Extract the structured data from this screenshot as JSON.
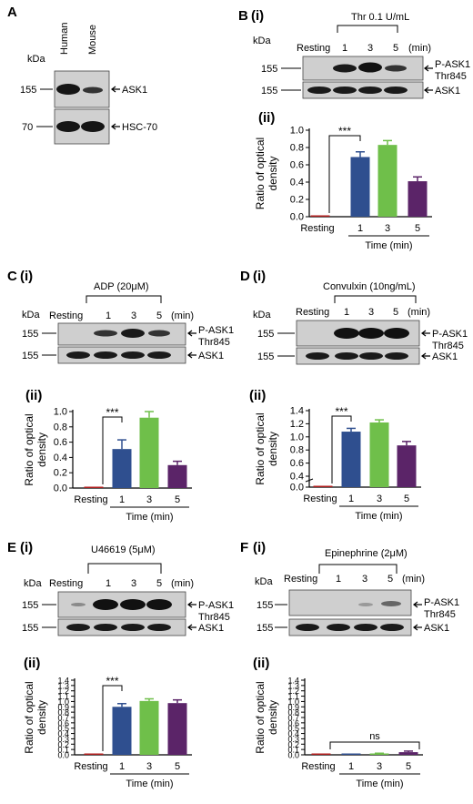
{
  "colors": {
    "resting": "#b11e1e",
    "t1": "#2f4f8f",
    "t3": "#6fbf4a",
    "t5": "#5b2468",
    "blot_bg": "#cfcfcf",
    "band_dark": "#1a1a1a"
  },
  "panelA": {
    "letter": "A",
    "kda": "kDa",
    "lanes": [
      "Human",
      "Mouse"
    ],
    "mw": [
      "155",
      "70"
    ],
    "bands": [
      "ASK1",
      "HSC-70"
    ]
  },
  "common": {
    "kda": "kDa",
    "resting": "Resting",
    "times": [
      "1",
      "3",
      "5"
    ],
    "min": "(min)",
    "mw": [
      "155",
      "155"
    ],
    "band_phospho_1": "P-ASK1",
    "band_phospho_2": "Thr845",
    "band_total": "ASK1",
    "ylabel_1": "Ratio of optical",
    "ylabel_2": "density",
    "xlabel": "Time (min)",
    "ii": "(ii)",
    "sig": "***",
    "ns": "ns"
  },
  "panels": [
    {
      "key": "B",
      "letter": "B",
      "i": "(i)",
      "treatment": "Thr 0.1 U/mL"
    },
    {
      "key": "C",
      "letter": "C",
      "i": "(i)",
      "treatment": "ADP (20μM)"
    },
    {
      "key": "D",
      "letter": "D",
      "i": "(i)",
      "treatment": "Convulxin (10ng/mL)"
    },
    {
      "key": "E",
      "letter": "E",
      "i": "(i)",
      "treatment": "U46619 (5μM)"
    },
    {
      "key": "F",
      "letter": "F",
      "i": "(i)",
      "treatment": "Epinephrine (2μM)"
    }
  ],
  "chart_data": [
    {
      "panel": "B(ii)",
      "type": "bar",
      "categories": [
        "Resting",
        "1",
        "3",
        "5"
      ],
      "values": [
        0.0,
        0.69,
        0.83,
        0.41
      ],
      "errors": [
        0.0,
        0.06,
        0.05,
        0.05
      ],
      "ylim": [
        0,
        1.0
      ],
      "yticks": [
        "0.0",
        "0.2",
        "0.4",
        "0.6",
        "0.8",
        "1.0"
      ],
      "xlabel": "Time (min)",
      "ylabel": "Ratio of optical density",
      "significance": "***"
    },
    {
      "panel": "C(ii)",
      "type": "bar",
      "categories": [
        "Resting",
        "1",
        "3",
        "5"
      ],
      "values": [
        0.0,
        0.51,
        0.92,
        0.3
      ],
      "errors": [
        0.0,
        0.12,
        0.08,
        0.05
      ],
      "ylim": [
        0,
        1.0
      ],
      "yticks": [
        "0.0",
        "0.2",
        "0.4",
        "0.6",
        "0.8",
        "1.0"
      ],
      "xlabel": "Time (min)",
      "ylabel": "Ratio of optical density",
      "significance": "***"
    },
    {
      "panel": "D(ii)",
      "type": "bar",
      "categories": [
        "Resting",
        "1",
        "3",
        "5"
      ],
      "values": [
        0.0,
        1.08,
        1.22,
        0.87
      ],
      "errors": [
        0.0,
        0.05,
        0.04,
        0.06
      ],
      "ylim": [
        0,
        1.4
      ],
      "yticks": [
        "0.0",
        "0.4",
        "0.6",
        "0.8",
        "1.0",
        "1.2",
        "1.4"
      ],
      "axis_break": true,
      "xlabel": "Time (min)",
      "ylabel": "Ratio of optical density",
      "significance": "***"
    },
    {
      "panel": "E(ii)",
      "type": "bar",
      "categories": [
        "Resting",
        "1",
        "3",
        "5"
      ],
      "values": [
        0.0,
        0.9,
        1.01,
        0.97
      ],
      "errors": [
        0.0,
        0.06,
        0.04,
        0.06
      ],
      "ylim": [
        0,
        1.4
      ],
      "yticks": [
        "0.0",
        "0.1",
        "0.2",
        "0.3",
        "0.4",
        "0.5",
        "0.6",
        "0.7",
        "0.8",
        "0.9",
        "1.0",
        "1.1",
        "1.2",
        "1.3",
        "1.4"
      ],
      "xlabel": "Time (min)",
      "ylabel": "Ratio of optical density",
      "significance": "***"
    },
    {
      "panel": "F(ii)",
      "type": "bar",
      "categories": [
        "Resting",
        "1",
        "3",
        "5"
      ],
      "values": [
        0.0,
        0.01,
        0.02,
        0.05
      ],
      "errors": [
        0.0,
        0.0,
        0.01,
        0.02
      ],
      "ylim": [
        0,
        1.4
      ],
      "yticks": [
        "0.0",
        "0.1",
        "0.2",
        "0.3",
        "0.4",
        "0.5",
        "0.6",
        "0.7",
        "0.8",
        "0.9",
        "1.0",
        "1.1",
        "1.2",
        "1.3",
        "1.4"
      ],
      "xlabel": "Time (min)",
      "ylabel": "Ratio of optical density",
      "significance": "ns"
    }
  ]
}
